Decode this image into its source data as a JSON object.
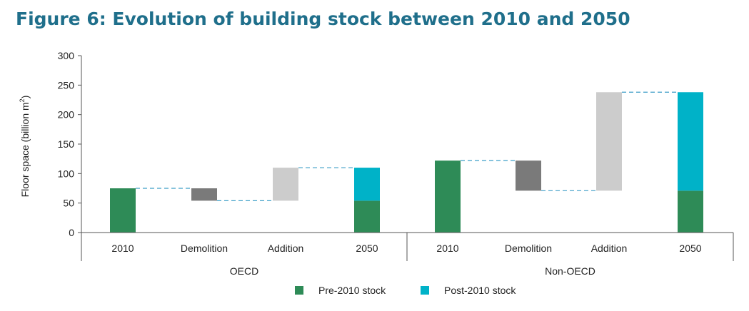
{
  "chart_data": {
    "type": "waterfall-bar",
    "title": "Figure 6: Evolution of building stock between 2010 and 2050",
    "ylabel": "Floor space (billion m",
    "ylabel_superscript": "2",
    "ylabel_suffix": ")",
    "ylim": [
      0,
      300
    ],
    "yticks": [
      0,
      50,
      100,
      150,
      200,
      250,
      300
    ],
    "colors": {
      "pre": "#2e8b57",
      "post": "#00b2c8",
      "demolition": "#7a7a7a",
      "addition": "#cccccc",
      "connector": "#3f9fc8"
    },
    "legend": [
      {
        "name": "Pre-2010 stock",
        "key": "pre"
      },
      {
        "name": "Post-2010 stock",
        "key": "post"
      }
    ],
    "legend_position": "bottom",
    "groups": [
      {
        "name": "OECD",
        "bars": [
          {
            "label": "2010",
            "segments": [
              {
                "key": "pre",
                "from": 0,
                "to": 75
              }
            ]
          },
          {
            "label": "Demolition",
            "segments": [
              {
                "key": "demolition",
                "from": 54,
                "to": 75
              }
            ]
          },
          {
            "label": "Addition",
            "segments": [
              {
                "key": "addition",
                "from": 54,
                "to": 110
              }
            ]
          },
          {
            "label": "2050",
            "segments": [
              {
                "key": "pre",
                "from": 0,
                "to": 54
              },
              {
                "key": "post",
                "from": 54,
                "to": 110
              }
            ]
          }
        ],
        "connectors": [
          75,
          54,
          110
        ]
      },
      {
        "name": "Non-OECD",
        "bars": [
          {
            "label": "2010",
            "segments": [
              {
                "key": "pre",
                "from": 0,
                "to": 122
              }
            ]
          },
          {
            "label": "Demolition",
            "segments": [
              {
                "key": "demolition",
                "from": 71,
                "to": 122
              }
            ]
          },
          {
            "label": "Addition",
            "segments": [
              {
                "key": "addition",
                "from": 71,
                "to": 238
              }
            ]
          },
          {
            "label": "2050",
            "segments": [
              {
                "key": "pre",
                "from": 0,
                "to": 71
              },
              {
                "key": "post",
                "from": 71,
                "to": 238
              }
            ]
          }
        ],
        "connectors": [
          122,
          71,
          238
        ]
      }
    ]
  }
}
